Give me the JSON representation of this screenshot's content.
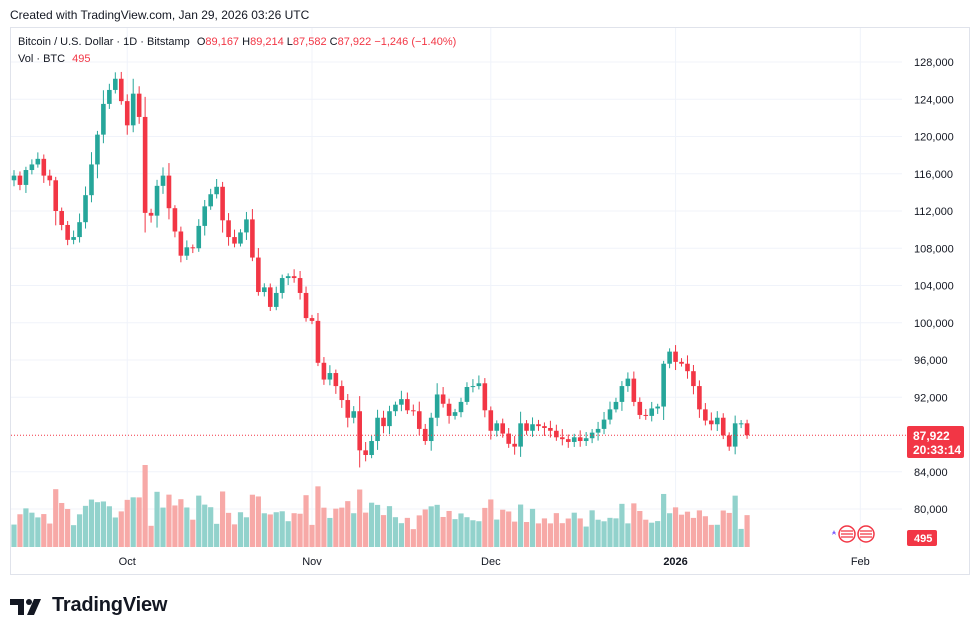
{
  "header": {
    "created": "Created with TradingView.com, Jan 29, 2026 03:26 UTC"
  },
  "legend": {
    "symbol": "Bitcoin / U.S. Dollar · 1D · Bitstamp",
    "o_label": "O",
    "o": "89,167",
    "h_label": "H",
    "h": "89,214",
    "l_label": "L",
    "l": "87,582",
    "c_label": "C",
    "c": "87,922",
    "change": "−1,246 (−1.40%)",
    "vol_label": "Vol · BTC",
    "vol": "495"
  },
  "price_tag": {
    "price": "87,922",
    "countdown": "20:33:14"
  },
  "vol_tag": "495",
  "footer": {
    "brand": "TradingView"
  },
  "colors": {
    "up": "#26a69a",
    "down": "#f23645",
    "up_vol": "#92d2cc",
    "down_vol": "#f7a9a7"
  },
  "chart_data": {
    "type": "candlestick",
    "title": "Bitcoin / U.S. Dollar · 1D · Bitstamp",
    "ylim": [
      78000,
      130000
    ],
    "y_ticks": [
      "128,000",
      "124,000",
      "120,000",
      "116,000",
      "112,000",
      "108,000",
      "104,000",
      "100,000",
      "96,000",
      "92,000",
      "84,000",
      "80,000"
    ],
    "y_tick_values": [
      128000,
      124000,
      120000,
      116000,
      112000,
      108000,
      104000,
      100000,
      96000,
      92000,
      84000,
      80000
    ],
    "x_labels": [
      {
        "label": "Oct",
        "index": 19
      },
      {
        "label": "Nov",
        "index": 50
      },
      {
        "label": "Dec",
        "index": 80
      },
      {
        "label": "2026",
        "index": 111
      },
      {
        "label": "Feb",
        "index": 142
      }
    ],
    "last_price": 87922,
    "closes": [
      115800,
      114800,
      116400,
      117000,
      117600,
      115800,
      115300,
      112000,
      110500,
      108900,
      109200,
      110800,
      113700,
      117000,
      120200,
      123500,
      125000,
      126200,
      123800,
      121200,
      124600,
      122100,
      111800,
      111500,
      114700,
      115800,
      112300,
      109800,
      107200,
      108100,
      108000,
      110400,
      112500,
      113800,
      114600,
      111000,
      109200,
      108500,
      109700,
      111100,
      107000,
      103300,
      103800,
      101700,
      103200,
      104800,
      105000,
      104800,
      103200,
      100500,
      100200,
      95700,
      93900,
      94600,
      93200,
      91700,
      89800,
      90500,
      86300,
      85800,
      87300,
      89800,
      88900,
      90500,
      91200,
      91800,
      90600,
      90500,
      88600,
      87300,
      89800,
      92300,
      91300,
      90000,
      90400,
      91500,
      93100,
      93200,
      93500,
      90600,
      88400,
      89200,
      88100,
      87000,
      86700,
      89200,
      88400,
      89100,
      88900,
      88700,
      88400,
      87700,
      87500,
      87200,
      87700,
      87300,
      87600,
      88200,
      88600,
      89600,
      90700,
      91500,
      93200,
      94000,
      91500,
      90100,
      90000,
      90800,
      91000,
      95600,
      96900,
      95800,
      95600,
      94800,
      93200,
      90700,
      89500,
      89100,
      89800,
      87900,
      86700,
      89200,
      89200,
      87922
    ],
    "volume_max": 98000
  }
}
